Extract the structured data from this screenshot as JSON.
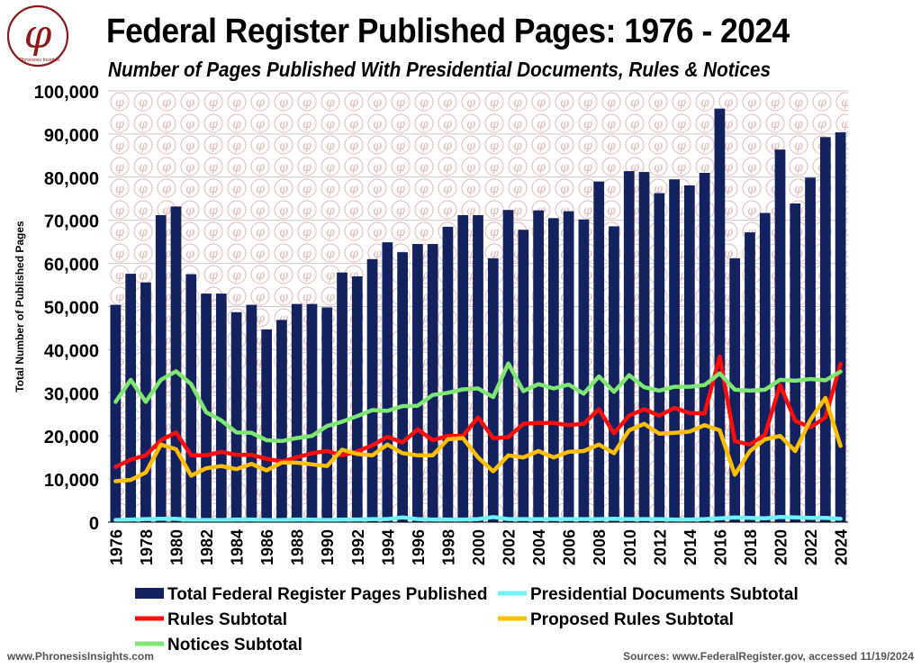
{
  "header": {
    "logo_text": "Phronesis Insights",
    "logo_glyph": "φ",
    "title": "Federal Register Published Pages: 1976 - 2024",
    "subtitle": "Number of Pages Published With Presidential Documents, Rules & Notices"
  },
  "footer": {
    "left": "www.PhronesisInsights.com",
    "right": "Sources: www.FederalRegister.gov, accessed 11/19/2024"
  },
  "colors": {
    "bars": "#14215f",
    "presidential": "#6ff3fa",
    "rules": "#ff0d0d",
    "proposed": "#ffbf00",
    "notices": "#7ee772",
    "watermark": "#e3b8b8"
  },
  "chart_data": {
    "type": "bar",
    "title": "Federal Register Published Pages: 1976 - 2024",
    "ylabel": "Total Number of Published Pages",
    "xlabel": "",
    "ylim": [
      0,
      100000
    ],
    "yticks": [
      0,
      10000,
      20000,
      30000,
      40000,
      50000,
      60000,
      70000,
      80000,
      90000,
      100000
    ],
    "ytick_labels": [
      "0",
      "10,000",
      "20,000",
      "30,000",
      "40,000",
      "50,000",
      "60,000",
      "70,000",
      "80,000",
      "90,000",
      "100,000"
    ],
    "x": [
      1976,
      1977,
      1978,
      1979,
      1980,
      1981,
      1982,
      1983,
      1984,
      1985,
      1986,
      1987,
      1988,
      1989,
      1990,
      1991,
      1992,
      1993,
      1994,
      1995,
      1996,
      1997,
      1998,
      1999,
      2000,
      2001,
      2002,
      2003,
      2004,
      2005,
      2006,
      2007,
      2008,
      2009,
      2010,
      2011,
      2012,
      2013,
      2014,
      2015,
      2016,
      2017,
      2018,
      2019,
      2020,
      2021,
      2022,
      2023,
      2024
    ],
    "x_tick_labels": [
      "1976",
      "1978",
      "1980",
      "1982",
      "1984",
      "1986",
      "1988",
      "1990",
      "1992",
      "1994",
      "1996",
      "1998",
      "2000",
      "2002",
      "2004",
      "2006",
      "2008",
      "2010",
      "2012",
      "2014",
      "2016",
      "2018",
      "2020",
      "2022",
      "2024"
    ],
    "series": [
      {
        "name": "Total Federal Register Pages Published",
        "kind": "bar",
        "values": [
          50400,
          57600,
          55600,
          71200,
          73200,
          57500,
          53000,
          53000,
          48700,
          50400,
          44700,
          46900,
          50600,
          50600,
          49800,
          57900,
          57000,
          61000,
          64900,
          62600,
          64500,
          64500,
          68500,
          71200,
          71200,
          61200,
          72400,
          67800,
          72300,
          70500,
          72100,
          70200,
          79000,
          68600,
          81400,
          81200,
          76300,
          79500,
          78100,
          81000,
          95900,
          61200,
          67200,
          71700,
          86400,
          73900,
          79900,
          89300,
          90400
        ]
      },
      {
        "name": "Presidential Documents Subtotal",
        "kind": "line",
        "values": [
          500,
          600,
          700,
          800,
          800,
          500,
          500,
          500,
          600,
          600,
          500,
          500,
          600,
          600,
          500,
          600,
          600,
          700,
          700,
          1100,
          700,
          600,
          600,
          600,
          700,
          1200,
          700,
          700,
          700,
          700,
          700,
          700,
          700,
          800,
          700,
          700,
          700,
          600,
          600,
          700,
          900,
          1100,
          1000,
          900,
          1200,
          1100,
          1000,
          1000,
          800
        ]
      },
      {
        "name": "Rules Subtotal",
        "kind": "line",
        "values": [
          12800,
          14500,
          15500,
          19000,
          20800,
          15500,
          15500,
          16300,
          15600,
          15600,
          14700,
          14100,
          15000,
          16000,
          16500,
          15500,
          16400,
          17800,
          19800,
          18500,
          21500,
          19000,
          20000,
          20000,
          24300,
          19500,
          19700,
          22800,
          23000,
          23000,
          22500,
          22800,
          26200,
          20600,
          24700,
          26200,
          24700,
          26500,
          25300,
          25200,
          38400,
          18800,
          18000,
          20300,
          31800,
          23500,
          22000,
          24300,
          36700
        ]
      },
      {
        "name": "Proposed Rules Subtotal",
        "kind": "line",
        "values": [
          9500,
          9800,
          11500,
          18000,
          16900,
          10800,
          12500,
          13000,
          12300,
          13500,
          12000,
          13800,
          13800,
          13400,
          13000,
          16800,
          15800,
          15500,
          18000,
          16000,
          15500,
          15500,
          19200,
          19500,
          15000,
          11800,
          15500,
          15000,
          16500,
          15000,
          16300,
          16500,
          18000,
          16000,
          21300,
          22800,
          20500,
          20700,
          21000,
          22500,
          21300,
          11000,
          16500,
          19200,
          20000,
          16500,
          23700,
          28800,
          17700
        ]
      },
      {
        "name": "Notices Subtotal",
        "kind": "line",
        "values": [
          27900,
          33000,
          27900,
          33000,
          35000,
          32000,
          25500,
          23600,
          20800,
          20700,
          19000,
          18800,
          19500,
          20000,
          22300,
          23300,
          24600,
          26000,
          25800,
          26900,
          27000,
          29500,
          30000,
          30800,
          31000,
          29000,
          36800,
          30400,
          32000,
          31000,
          31900,
          29800,
          33800,
          30200,
          34100,
          31300,
          30500,
          31400,
          31400,
          31800,
          34500,
          30700,
          30500,
          30700,
          33000,
          32800,
          33200,
          32900,
          34900
        ]
      }
    ],
    "legend": {
      "placement": "bottom",
      "entries": [
        "Total Federal Register Pages Published",
        "Presidential Documents Subtotal",
        "Rules Subtotal",
        "Proposed Rules Subtotal",
        "Notices Subtotal"
      ]
    },
    "grid": true
  }
}
